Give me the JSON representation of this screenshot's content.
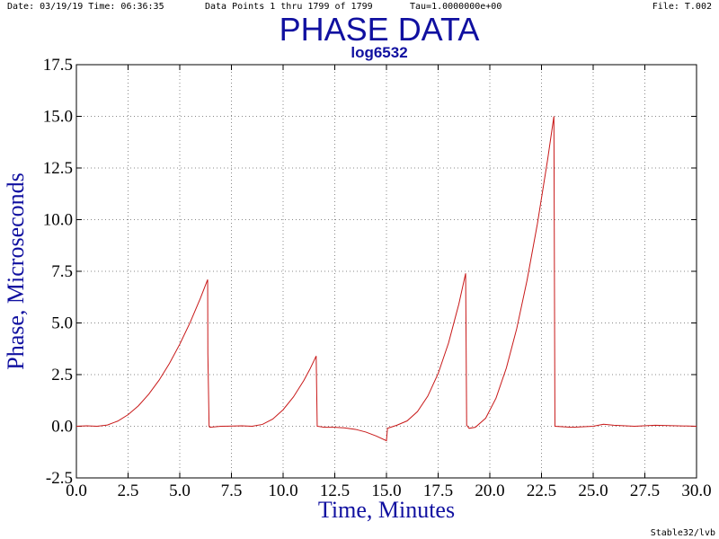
{
  "chart_data": {
    "type": "line",
    "title": "PHASE DATA",
    "subtitle": "log6532",
    "header": {
      "date_time": "Date: 03/19/19  Time: 06:36:35",
      "points": "Data Points 1 thru 1799 of 1799",
      "tau": "Tau=1.0000000e+00",
      "file": "File: T.002"
    },
    "footer": "Stable32/lvb",
    "x_label": "Time, Minutes",
    "y_label": "Phase, Microseconds",
    "xlim": [
      0,
      30
    ],
    "ylim": [
      -2.5,
      17.5
    ],
    "xticks": [
      {
        "value": 0,
        "label": "0.0"
      },
      2.5,
      {
        "value": 5,
        "label": "5.0"
      },
      7.5,
      {
        "value": 10,
        "label": "10.0"
      },
      12.5,
      {
        "value": 15,
        "label": "15.0"
      },
      17.5,
      {
        "value": 20,
        "label": "20.0"
      },
      22.5,
      {
        "value": 25,
        "label": "25.0"
      },
      27.5,
      {
        "value": 30,
        "label": "30.0"
      }
    ],
    "yticks": [
      -2.5,
      {
        "value": 0,
        "label": "0.0"
      },
      2.5,
      {
        "value": 5,
        "label": "5.0"
      },
      7.5,
      {
        "value": 10,
        "label": "10.0"
      },
      12.5,
      {
        "value": 15,
        "label": "15.0"
      },
      17.5
    ],
    "grid": true,
    "series": [
      {
        "color": "#c81818",
        "x": [
          0,
          0.5,
          1.0,
          1.5,
          2.0,
          2.5,
          3.0,
          3.5,
          4.0,
          4.5,
          5.0,
          5.5,
          6.0,
          6.35,
          6.36,
          6.42,
          6.45,
          7.0,
          8.0,
          8.5,
          9.0,
          9.5,
          10.0,
          10.5,
          11.0,
          11.3,
          11.6,
          11.65,
          12.0,
          12.5,
          13.0,
          13.5,
          14.0,
          14.5,
          15.0,
          15.05,
          15.5,
          16.0,
          16.5,
          17.0,
          17.5,
          18.0,
          18.5,
          18.83,
          18.88,
          19.0,
          19.3,
          19.8,
          20.3,
          20.8,
          21.3,
          21.8,
          22.3,
          22.8,
          23.1,
          23.15,
          24.0,
          25.0,
          25.5,
          26.0,
          27.0,
          28.0,
          30.0
        ],
        "values": [
          0,
          0.02,
          0,
          0.06,
          0.25,
          0.56,
          0.99,
          1.55,
          2.23,
          3.04,
          3.97,
          5.02,
          6.2,
          7.1,
          3.5,
          0,
          -0.05,
          0,
          0.02,
          0,
          0.09,
          0.35,
          0.8,
          1.42,
          2.21,
          2.77,
          3.4,
          0,
          -0.05,
          -0.05,
          -0.08,
          -0.15,
          -0.28,
          -0.47,
          -0.7,
          -0.1,
          0.05,
          0.26,
          0.71,
          1.46,
          2.55,
          4.02,
          5.91,
          7.4,
          0.05,
          -0.1,
          -0.05,
          0.39,
          1.36,
          2.82,
          4.72,
          7.06,
          9.79,
          12.93,
          15.0,
          0,
          -0.05,
          0,
          0.1,
          0.05,
          0,
          0.05,
          0
        ]
      }
    ]
  }
}
